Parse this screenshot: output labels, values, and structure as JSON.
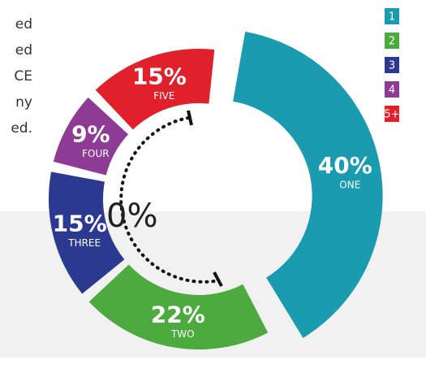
{
  "chart_data": {
    "type": "pie",
    "categories": [
      "1",
      "2",
      "3",
      "4",
      "5+"
    ],
    "segment_labels": [
      "ONE",
      "TWO",
      "THREE",
      "FOUR",
      "FIVE"
    ],
    "values": [
      40,
      22,
      15,
      9,
      15
    ],
    "value_labels": [
      "40%",
      "22%",
      "15%",
      "9%",
      "15%"
    ],
    "colors": [
      "#1a9bb0",
      "#4caa3e",
      "#2b3990",
      "#8e3b96",
      "#e0202a"
    ],
    "annotation": "60%",
    "text_fragments": [
      "ed",
      "ed",
      "CE",
      "ny",
      "ed."
    ]
  }
}
